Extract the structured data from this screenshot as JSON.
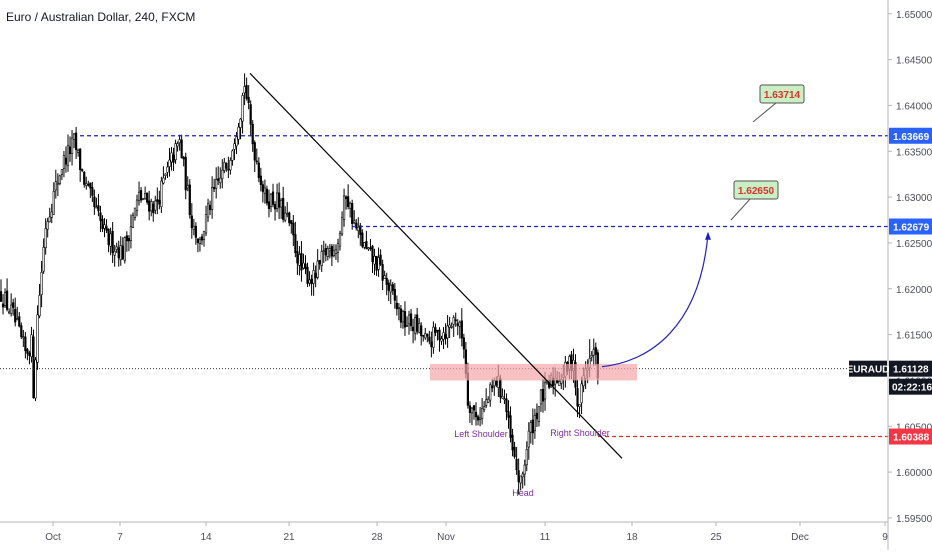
{
  "chart_data": {
    "type": "candlestick",
    "title": "Euro / Australian Dollar, 240, FXCM",
    "symbol": "EURAUD",
    "last_price": "1.61128",
    "countdown": "02:22:16",
    "ylim": [
      1.5915,
      1.6515
    ],
    "y_ticks": [
      "1.65000",
      "1.64500",
      "1.64000",
      "1.63500",
      "1.63000",
      "1.62500",
      "1.62000",
      "1.61500",
      "1.61000",
      "1.60500",
      "1.60000",
      "1.59500"
    ],
    "x_ticks": [
      "Oct",
      "7",
      "14",
      "21",
      "28",
      "Nov",
      "11",
      "18",
      "25",
      "Dec",
      "9"
    ],
    "price_labels": [
      {
        "text": "1.63669",
        "value": 1.63669,
        "color": "#2962ff"
      },
      {
        "text": "1.62679",
        "value": 1.62679,
        "color": "#2962ff"
      },
      {
        "text": "1.61128",
        "value": 1.61128,
        "color": "#131722"
      },
      {
        "text": "1.60388",
        "value": 1.60388,
        "color": "#f23645"
      }
    ],
    "targets": [
      "1.63714",
      "1.62650"
    ],
    "pattern_labels": [
      "Left Shoulder",
      "Head",
      "Right Shoulder"
    ],
    "key_points": {
      "sep_low": 1.608,
      "oct_high": 1.637,
      "oct17_peak": 1.6435,
      "head_low": 1.598,
      "left_shoulder_low": 1.605,
      "right_shoulder_low": 1.606,
      "last_high": 1.6145
    }
  }
}
